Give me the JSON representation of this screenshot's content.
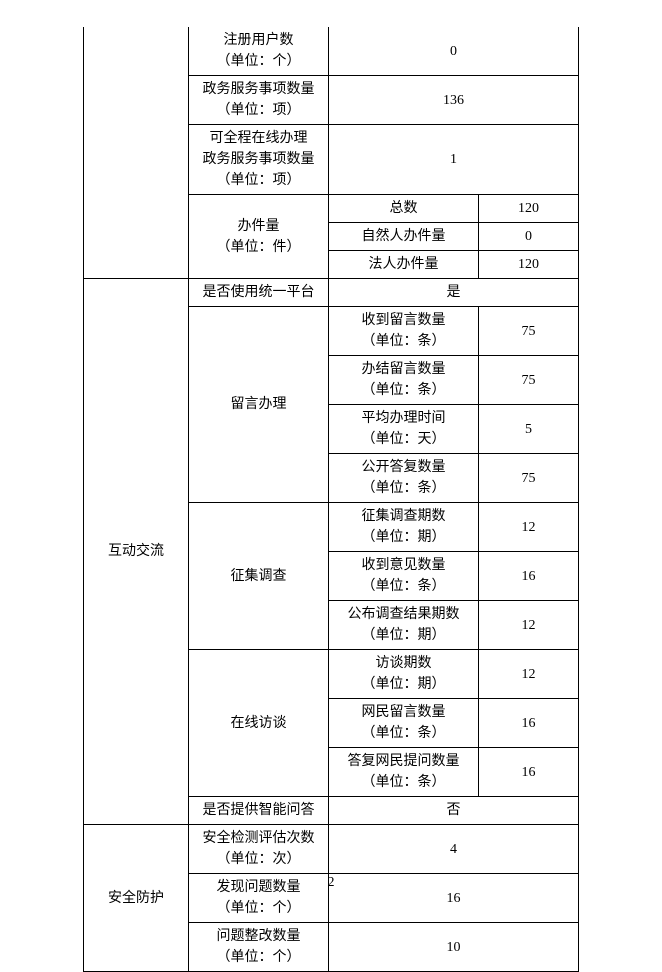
{
  "rows": [
    {
      "col1": null,
      "col2": "注册用户数\n（单位：个）",
      "col3plus4": "0"
    },
    {
      "col1": null,
      "col2": "政务服务事项数量\n（单位：项）",
      "col3plus4": "136"
    },
    {
      "col1": null,
      "col2": "可全程在线办理\n政务服务事项数量\n（单位：项）",
      "col3plus4": "1"
    },
    {
      "col1": null,
      "col2_span3": "办件量\n（单位：件）",
      "col3": "总数",
      "col4": "120"
    },
    {
      "col3": "自然人办件量",
      "col4": "0"
    },
    {
      "col3": "法人办件量",
      "col4": "120"
    },
    {
      "col1_span12": "互动交流",
      "col2": "是否使用统一平台",
      "col3plus4": "是"
    },
    {
      "col2_span4": "留言办理",
      "col3": "收到留言数量\n（单位：条）",
      "col4": "75"
    },
    {
      "col3": "办结留言数量\n（单位：条）",
      "col4": "75"
    },
    {
      "col3": "平均办理时间\n（单位：天）",
      "col4": "5"
    },
    {
      "col3": "公开答复数量\n（单位：条）",
      "col4": "75"
    },
    {
      "col2_span3": "征集调查",
      "col3": "征集调查期数\n（单位：期）",
      "col4": "12"
    },
    {
      "col3": "收到意见数量\n（单位：条）",
      "col4": "16"
    },
    {
      "col3": "公布调查结果期数\n（单位：期）",
      "col4": "12"
    },
    {
      "col2_span3": "在线访谈",
      "col3": "访谈期数\n（单位：期）",
      "col4": "12"
    },
    {
      "col3": "网民留言数量\n（单位：条）",
      "col4": "16"
    },
    {
      "col3": "答复网民提问数量\n（单位：条）",
      "col4": "16"
    },
    {
      "col2": "是否提供智能问答",
      "col3plus4": "否"
    },
    {
      "col1_span3": "安全防护",
      "col2": "安全检测评估次数\n（单位：次）",
      "col3plus4": "4"
    },
    {
      "col2": "发现问题数量\n（单位：个）",
      "col3plus4": "16"
    },
    {
      "col2": "问题整改数量\n（单位：个）",
      "col3plus4": "10"
    }
  ],
  "page_number": "2"
}
